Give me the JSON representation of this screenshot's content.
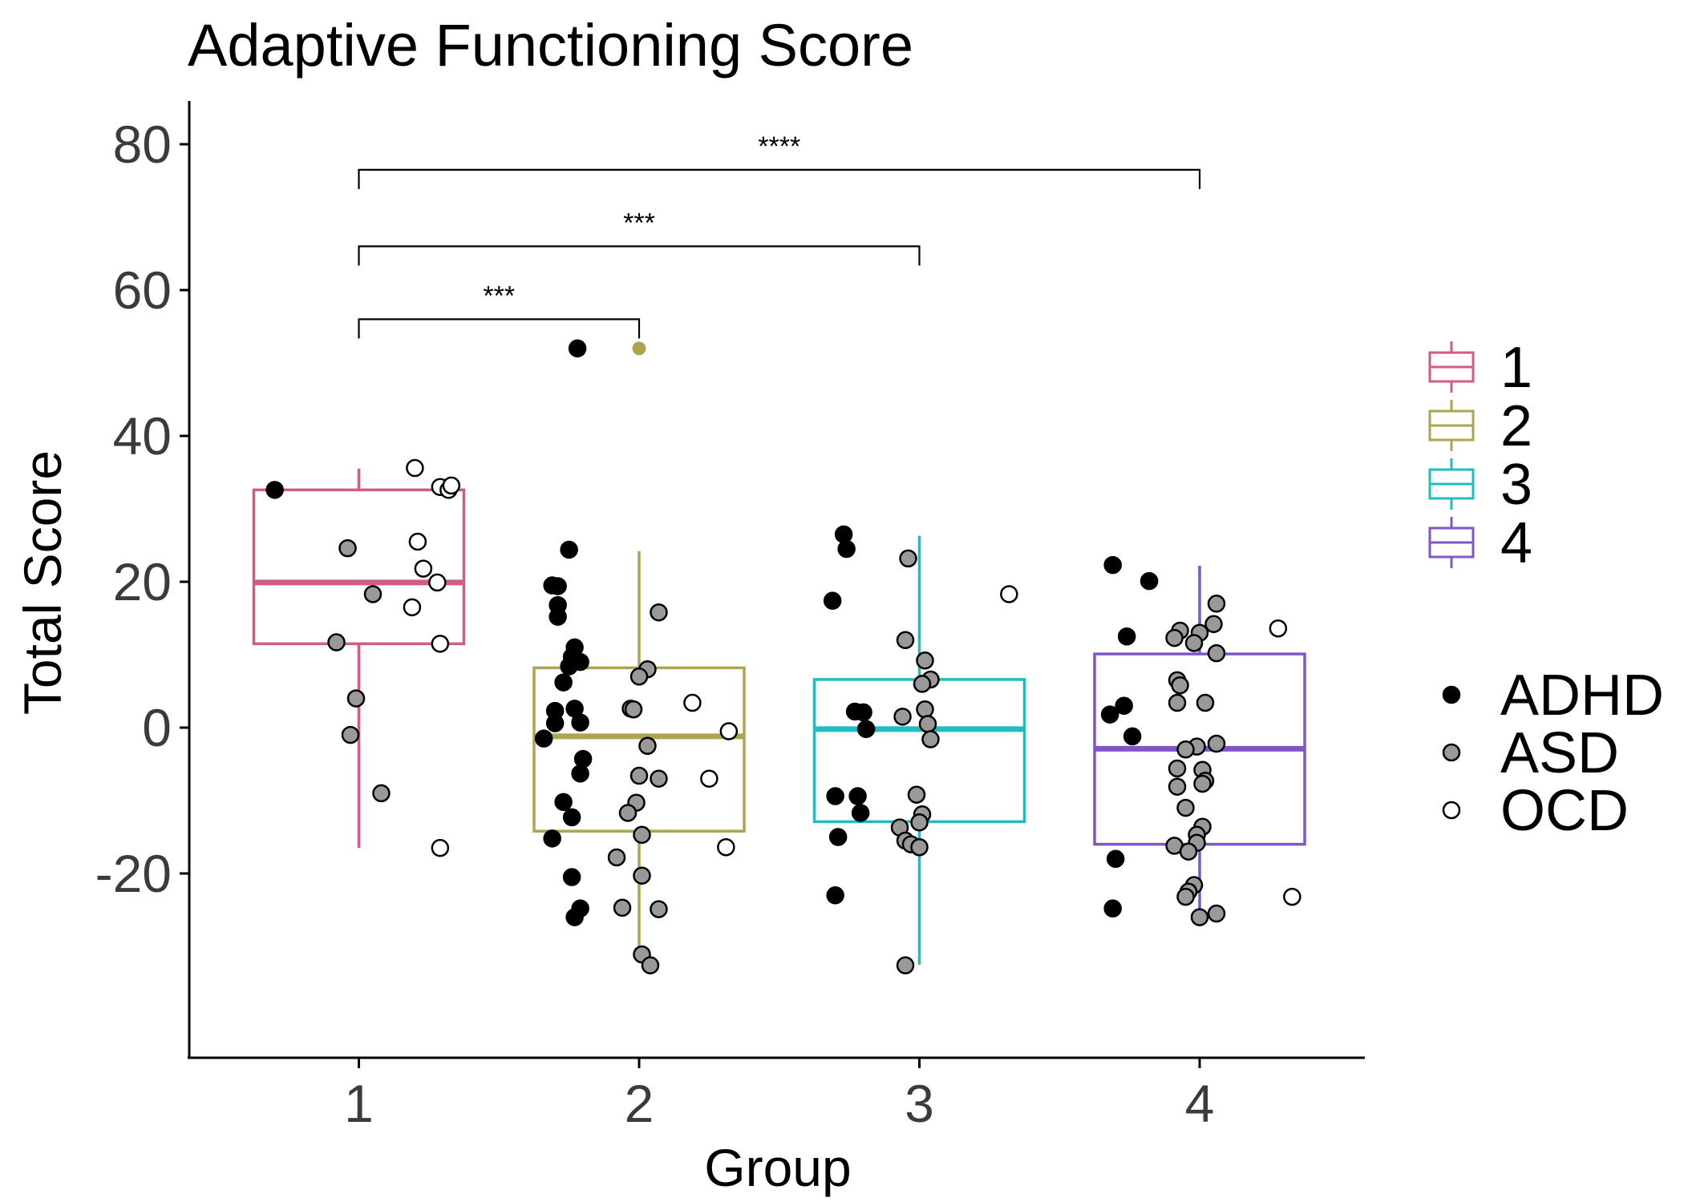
{
  "chart_data": {
    "type": "box",
    "title": "Adaptive Functioning Score",
    "xlabel": "Group",
    "ylabel": "Total Score",
    "categories": [
      "1",
      "2",
      "3",
      "4"
    ],
    "ylim": [
      -46,
      86
    ],
    "yticks": [
      -20,
      0,
      20,
      40,
      60,
      80
    ],
    "ytick_labels": [
      "-20",
      "0",
      "20",
      "40",
      "60",
      "80"
    ],
    "grid": false,
    "legend_position": "right",
    "box_colors": {
      "1": "#d35a85",
      "2": "#aba54f",
      "3": "#1fbcc0",
      "4": "#7e56c8"
    },
    "boxes": [
      {
        "group": "1",
        "whisker_low": -16.5,
        "q1": 11.5,
        "median": 19.9,
        "q3": 32.6,
        "whisker_high": 35.5,
        "outliers": []
      },
      {
        "group": "2",
        "whisker_low": -30.0,
        "q1": -14.2,
        "median": -1.2,
        "q3": 8.2,
        "whisker_high": 24.2,
        "outliers": [
          52
        ]
      },
      {
        "group": "3",
        "whisker_low": -32.5,
        "q1": -12.9,
        "median": -0.2,
        "q3": 6.6,
        "whisker_high": 26.3,
        "outliers": []
      },
      {
        "group": "4",
        "whisker_low": -25.0,
        "q1": -16.0,
        "median": -2.9,
        "q3": 10.1,
        "whisker_high": 22.2,
        "outliers": []
      }
    ],
    "diagnosis_legend": [
      {
        "label": "ADHD",
        "fill": "#000000"
      },
      {
        "label": "ASD",
        "fill": "#999999"
      },
      {
        "label": "OCD",
        "fill": "#ffffff"
      }
    ],
    "group_legend": [
      "1",
      "2",
      "3",
      "4"
    ],
    "significance": [
      {
        "from": "1",
        "to": "2",
        "y": 56,
        "label": "***"
      },
      {
        "from": "1",
        "to": "3",
        "y": 66,
        "label": "***"
      },
      {
        "from": "1",
        "to": "4",
        "y": 76.5,
        "label": "****"
      }
    ],
    "points": [
      {
        "x": 0.7,
        "y": 32.6,
        "dx": "ADHD"
      },
      {
        "x": 0.96,
        "y": 24.6,
        "dx": "ASD"
      },
      {
        "x": 1.05,
        "y": 18.3,
        "dx": "ASD"
      },
      {
        "x": 0.92,
        "y": 11.7,
        "dx": "ASD"
      },
      {
        "x": 0.99,
        "y": 4.0,
        "dx": "ASD"
      },
      {
        "x": 0.97,
        "y": -1.0,
        "dx": "ASD"
      },
      {
        "x": 1.08,
        "y": -9.0,
        "dx": "ASD"
      },
      {
        "x": 1.2,
        "y": 35.6,
        "dx": "OCD"
      },
      {
        "x": 1.29,
        "y": 33.0,
        "dx": "OCD"
      },
      {
        "x": 1.32,
        "y": 32.6,
        "dx": "OCD"
      },
      {
        "x": 1.33,
        "y": 33.2,
        "dx": "OCD"
      },
      {
        "x": 1.21,
        "y": 25.5,
        "dx": "OCD"
      },
      {
        "x": 1.23,
        "y": 21.8,
        "dx": "OCD"
      },
      {
        "x": 1.28,
        "y": 19.9,
        "dx": "OCD"
      },
      {
        "x": 1.19,
        "y": 16.5,
        "dx": "OCD"
      },
      {
        "x": 1.29,
        "y": 11.5,
        "dx": "OCD"
      },
      {
        "x": 1.29,
        "y": -16.5,
        "dx": "OCD"
      },
      {
        "x": 1.78,
        "y": 52.0,
        "dx": "ADHD"
      },
      {
        "x": 1.75,
        "y": 24.4,
        "dx": "ADHD"
      },
      {
        "x": 1.69,
        "y": 19.5,
        "dx": "ADHD"
      },
      {
        "x": 1.71,
        "y": 19.4,
        "dx": "ADHD"
      },
      {
        "x": 1.71,
        "y": 16.8,
        "dx": "ADHD"
      },
      {
        "x": 1.71,
        "y": 15.2,
        "dx": "ADHD"
      },
      {
        "x": 1.77,
        "y": 11.0,
        "dx": "ADHD"
      },
      {
        "x": 1.76,
        "y": 9.7,
        "dx": "ADHD"
      },
      {
        "x": 1.79,
        "y": 9.0,
        "dx": "ADHD"
      },
      {
        "x": 1.75,
        "y": 8.4,
        "dx": "ADHD"
      },
      {
        "x": 1.73,
        "y": 6.2,
        "dx": "ADHD"
      },
      {
        "x": 1.7,
        "y": 2.3,
        "dx": "ADHD"
      },
      {
        "x": 1.77,
        "y": 2.6,
        "dx": "ADHD"
      },
      {
        "x": 1.7,
        "y": 0.6,
        "dx": "ADHD"
      },
      {
        "x": 1.79,
        "y": 0.7,
        "dx": "ADHD"
      },
      {
        "x": 1.66,
        "y": -1.5,
        "dx": "ADHD"
      },
      {
        "x": 1.8,
        "y": -4.3,
        "dx": "ADHD"
      },
      {
        "x": 1.79,
        "y": -6.3,
        "dx": "ADHD"
      },
      {
        "x": 1.73,
        "y": -10.2,
        "dx": "ADHD"
      },
      {
        "x": 1.76,
        "y": -12.3,
        "dx": "ADHD"
      },
      {
        "x": 1.69,
        "y": -15.2,
        "dx": "ADHD"
      },
      {
        "x": 1.76,
        "y": -20.5,
        "dx": "ADHD"
      },
      {
        "x": 1.79,
        "y": -24.8,
        "dx": "ADHD"
      },
      {
        "x": 1.77,
        "y": -26.0,
        "dx": "ADHD"
      },
      {
        "x": 2.07,
        "y": 15.8,
        "dx": "ASD"
      },
      {
        "x": 2.03,
        "y": 8.0,
        "dx": "ASD"
      },
      {
        "x": 2.0,
        "y": 7.0,
        "dx": "ASD"
      },
      {
        "x": 1.97,
        "y": 2.6,
        "dx": "ASD"
      },
      {
        "x": 1.98,
        "y": 2.5,
        "dx": "ASD"
      },
      {
        "x": 2.03,
        "y": -2.5,
        "dx": "ASD"
      },
      {
        "x": 2.0,
        "y": -6.6,
        "dx": "ASD"
      },
      {
        "x": 2.07,
        "y": -7.0,
        "dx": "ASD"
      },
      {
        "x": 1.99,
        "y": -10.3,
        "dx": "ASD"
      },
      {
        "x": 1.96,
        "y": -11.7,
        "dx": "ASD"
      },
      {
        "x": 2.01,
        "y": -14.7,
        "dx": "ASD"
      },
      {
        "x": 1.92,
        "y": -17.8,
        "dx": "ASD"
      },
      {
        "x": 2.01,
        "y": -20.3,
        "dx": "ASD"
      },
      {
        "x": 1.94,
        "y": -24.7,
        "dx": "ASD"
      },
      {
        "x": 2.07,
        "y": -24.9,
        "dx": "ASD"
      },
      {
        "x": 2.01,
        "y": -31.1,
        "dx": "ASD"
      },
      {
        "x": 2.04,
        "y": -32.6,
        "dx": "ASD"
      },
      {
        "x": 2.0,
        "y": 52.0,
        "dx": "outlier"
      },
      {
        "x": 2.19,
        "y": 3.4,
        "dx": "OCD"
      },
      {
        "x": 2.32,
        "y": -0.5,
        "dx": "OCD"
      },
      {
        "x": 2.25,
        "y": -7.0,
        "dx": "OCD"
      },
      {
        "x": 2.31,
        "y": -16.4,
        "dx": "OCD"
      },
      {
        "x": 2.73,
        "y": 26.5,
        "dx": "ADHD"
      },
      {
        "x": 2.74,
        "y": 24.5,
        "dx": "ADHD"
      },
      {
        "x": 2.69,
        "y": 17.4,
        "dx": "ADHD"
      },
      {
        "x": 2.77,
        "y": 2.2,
        "dx": "ADHD"
      },
      {
        "x": 2.8,
        "y": 2.1,
        "dx": "ADHD"
      },
      {
        "x": 2.81,
        "y": -0.2,
        "dx": "ADHD"
      },
      {
        "x": 2.7,
        "y": -9.4,
        "dx": "ADHD"
      },
      {
        "x": 2.78,
        "y": -9.4,
        "dx": "ADHD"
      },
      {
        "x": 2.79,
        "y": -11.7,
        "dx": "ADHD"
      },
      {
        "x": 2.71,
        "y": -15.0,
        "dx": "ADHD"
      },
      {
        "x": 2.7,
        "y": -23.0,
        "dx": "ADHD"
      },
      {
        "x": 2.96,
        "y": 23.2,
        "dx": "ASD"
      },
      {
        "x": 2.95,
        "y": 12.0,
        "dx": "ASD"
      },
      {
        "x": 3.02,
        "y": 9.2,
        "dx": "ASD"
      },
      {
        "x": 3.04,
        "y": 6.6,
        "dx": "ASD"
      },
      {
        "x": 3.01,
        "y": 6.0,
        "dx": "ASD"
      },
      {
        "x": 3.02,
        "y": 2.5,
        "dx": "ASD"
      },
      {
        "x": 2.94,
        "y": 1.5,
        "dx": "ASD"
      },
      {
        "x": 3.03,
        "y": 0.5,
        "dx": "ASD"
      },
      {
        "x": 3.04,
        "y": -1.6,
        "dx": "ASD"
      },
      {
        "x": 2.99,
        "y": -9.2,
        "dx": "ASD"
      },
      {
        "x": 3.01,
        "y": -11.9,
        "dx": "ASD"
      },
      {
        "x": 3.0,
        "y": -13.0,
        "dx": "ASD"
      },
      {
        "x": 2.93,
        "y": -13.7,
        "dx": "ASD"
      },
      {
        "x": 2.95,
        "y": -15.5,
        "dx": "ASD"
      },
      {
        "x": 2.97,
        "y": -16.0,
        "dx": "ASD"
      },
      {
        "x": 3.0,
        "y": -16.4,
        "dx": "ASD"
      },
      {
        "x": 2.95,
        "y": -32.6,
        "dx": "ASD"
      },
      {
        "x": 3.32,
        "y": 18.3,
        "dx": "OCD"
      },
      {
        "x": 3.69,
        "y": 22.3,
        "dx": "ADHD"
      },
      {
        "x": 3.82,
        "y": 20.1,
        "dx": "ADHD"
      },
      {
        "x": 3.74,
        "y": 12.5,
        "dx": "ADHD"
      },
      {
        "x": 3.73,
        "y": 3.0,
        "dx": "ADHD"
      },
      {
        "x": 3.68,
        "y": 1.8,
        "dx": "ADHD"
      },
      {
        "x": 3.76,
        "y": -1.2,
        "dx": "ADHD"
      },
      {
        "x": 3.7,
        "y": -18.0,
        "dx": "ADHD"
      },
      {
        "x": 3.69,
        "y": -24.8,
        "dx": "ADHD"
      },
      {
        "x": 4.06,
        "y": 17.0,
        "dx": "ASD"
      },
      {
        "x": 4.05,
        "y": 14.2,
        "dx": "ASD"
      },
      {
        "x": 3.93,
        "y": 13.3,
        "dx": "ASD"
      },
      {
        "x": 4.0,
        "y": 13.0,
        "dx": "ASD"
      },
      {
        "x": 3.91,
        "y": 12.3,
        "dx": "ASD"
      },
      {
        "x": 3.98,
        "y": 11.6,
        "dx": "ASD"
      },
      {
        "x": 4.06,
        "y": 10.2,
        "dx": "ASD"
      },
      {
        "x": 3.92,
        "y": 6.5,
        "dx": "ASD"
      },
      {
        "x": 3.93,
        "y": 5.8,
        "dx": "ASD"
      },
      {
        "x": 3.92,
        "y": 3.4,
        "dx": "ASD"
      },
      {
        "x": 4.02,
        "y": 3.4,
        "dx": "ASD"
      },
      {
        "x": 4.06,
        "y": -2.2,
        "dx": "ASD"
      },
      {
        "x": 3.99,
        "y": -2.6,
        "dx": "ASD"
      },
      {
        "x": 3.95,
        "y": -3.0,
        "dx": "ASD"
      },
      {
        "x": 3.92,
        "y": -5.6,
        "dx": "ASD"
      },
      {
        "x": 4.01,
        "y": -5.8,
        "dx": "ASD"
      },
      {
        "x": 4.02,
        "y": -7.3,
        "dx": "ASD"
      },
      {
        "x": 4.01,
        "y": -7.7,
        "dx": "ASD"
      },
      {
        "x": 3.92,
        "y": -8.1,
        "dx": "ASD"
      },
      {
        "x": 3.95,
        "y": -11.0,
        "dx": "ASD"
      },
      {
        "x": 4.01,
        "y": -13.6,
        "dx": "ASD"
      },
      {
        "x": 3.99,
        "y": -14.7,
        "dx": "ASD"
      },
      {
        "x": 3.99,
        "y": -15.8,
        "dx": "ASD"
      },
      {
        "x": 3.91,
        "y": -16.2,
        "dx": "ASD"
      },
      {
        "x": 3.96,
        "y": -17.0,
        "dx": "ASD"
      },
      {
        "x": 3.98,
        "y": -21.6,
        "dx": "ASD"
      },
      {
        "x": 3.96,
        "y": -22.5,
        "dx": "ASD"
      },
      {
        "x": 3.95,
        "y": -23.2,
        "dx": "ASD"
      },
      {
        "x": 4.06,
        "y": -25.5,
        "dx": "ASD"
      },
      {
        "x": 4.0,
        "y": -26.0,
        "dx": "ASD"
      },
      {
        "x": 4.28,
        "y": 13.6,
        "dx": "OCD"
      },
      {
        "x": 4.33,
        "y": -23.2,
        "dx": "OCD"
      }
    ]
  }
}
